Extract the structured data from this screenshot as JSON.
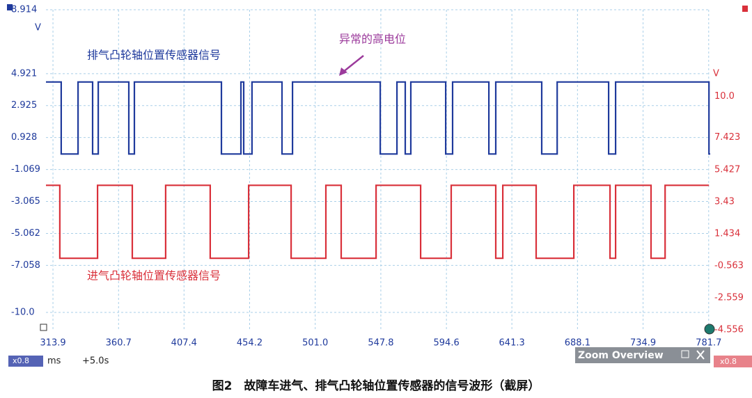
{
  "chart_data": {
    "type": "line",
    "annotations": {
      "blue_label": "排气凸轮轴位置传感器信号",
      "red_label": "进气凸轮轴位置传感器信号",
      "callout": "异常的高电位"
    },
    "caption": "图2　故障车进气、排气凸轮轴位置传感器的信号波形（截屏）",
    "y_unit": "V",
    "y2_unit": "V",
    "toolbar": {
      "left_zoom": "x0.8",
      "x_unit": "ms",
      "offset": "+5.0s",
      "zoom_panel": "Zoom Overview",
      "right_zoom": "x0.8"
    },
    "xlim": [
      308.9,
      782.8
    ],
    "xticks": [
      313.9,
      360.7,
      407.4,
      454.2,
      {
        "value": 501,
        "label": "501.0"
      },
      547.8,
      594.6,
      641.3,
      688.1,
      734.9,
      781.7
    ],
    "ylim": [
      -11.13,
      8.914
    ],
    "yticks": [
      8.914,
      4.921,
      2.925,
      0.928,
      -1.069,
      -3.065,
      -5.062,
      -7.058,
      {
        "value": -10,
        "label": "-10.0"
      }
    ],
    "y2lim": [
      -4.6,
      15.39
    ],
    "y2ticks": [
      {
        "value": 10,
        "label": "10.0"
      },
      7.423,
      5.427,
      3.43,
      1.434,
      -0.563,
      -2.559,
      -4.556
    ],
    "grid": true,
    "series": [
      {
        "color": "#1f3a9c",
        "x": [
          308.9,
          319.8,
          319.8,
          331.8,
          331.8,
          342.2,
          342.2,
          346.2,
          346.2,
          368.0,
          368.0,
          372.0,
          372.0,
          434.1,
          434.1,
          448.0,
          448.0,
          450.0,
          450.0,
          455.9,
          455.9,
          477.3,
          477.3,
          484.8,
          484.8,
          547.4,
          547.4,
          559.3,
          559.3,
          565.2,
          565.2,
          569.2,
          569.2,
          594.1,
          594.1,
          599.0,
          599.0,
          624.9,
          624.9,
          629.8,
          629.8,
          662.6,
          662.6,
          673.6,
          673.6,
          710.3,
          710.3,
          715.3,
          715.3,
          781.9,
          781.9,
          782.8
        ],
        "values": [
          4.4,
          4.4,
          -0.1,
          -0.1,
          4.4,
          4.4,
          -0.1,
          -0.1,
          4.4,
          4.4,
          -0.1,
          -0.1,
          4.4,
          4.4,
          -0.1,
          -0.1,
          4.4,
          4.4,
          -0.1,
          -0.1,
          4.4,
          4.4,
          -0.1,
          -0.1,
          4.4,
          4.4,
          -0.1,
          -0.1,
          4.4,
          4.4,
          -0.1,
          -0.1,
          4.4,
          4.4,
          -0.1,
          -0.1,
          4.4,
          4.4,
          -0.1,
          -0.1,
          4.4,
          4.4,
          -0.1,
          -0.1,
          4.4,
          4.4,
          -0.1,
          -0.1,
          4.4,
          4.4,
          -0.1,
          -0.1
        ]
      },
      {
        "color": "#d9303a",
        "axis": "y2",
        "x": [
          308.9,
          318.8,
          318.8,
          345.7,
          345.7,
          370.5,
          370.5,
          394.3,
          394.3,
          426.1,
          426.1,
          453.5,
          453.5,
          483.8,
          483.8,
          508.6,
          508.6,
          519.5,
          519.5,
          544.4,
          544.4,
          576.2,
          576.2,
          598.0,
          598.0,
          629.8,
          629.8,
          634.8,
          634.8,
          658.6,
          658.6,
          685.5,
          685.5,
          711.3,
          711.3,
          715.3,
          715.3,
          740.6,
          740.6,
          750.6,
          750.6,
          781.9
        ],
        "values": [
          4.45,
          4.45,
          -0.1,
          -0.1,
          4.45,
          4.45,
          -0.1,
          -0.1,
          4.45,
          4.45,
          -0.1,
          -0.1,
          4.45,
          4.45,
          -0.1,
          -0.1,
          4.45,
          4.45,
          -0.1,
          -0.1,
          4.45,
          4.45,
          -0.1,
          -0.1,
          4.45,
          4.45,
          -0.1,
          -0.1,
          4.45,
          4.45,
          -0.1,
          -0.1,
          4.45,
          4.45,
          -0.1,
          -0.1,
          4.45,
          4.45,
          -0.1,
          -0.1,
          4.45,
          4.45
        ]
      }
    ]
  }
}
